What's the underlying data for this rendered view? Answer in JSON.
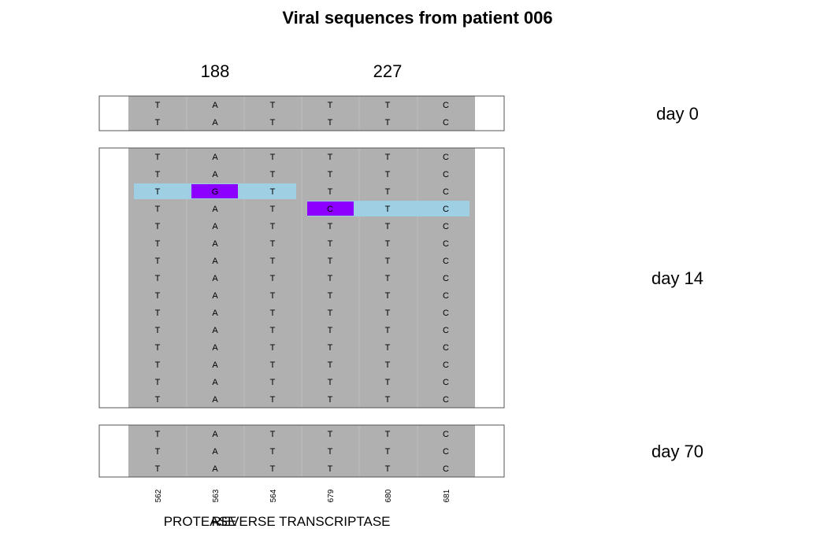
{
  "title": "Viral sequences from patient 006",
  "codon_labels": [
    "188",
    "227"
  ],
  "positions": [
    "562",
    "563",
    "564",
    "679",
    "680",
    "681"
  ],
  "regions": [
    "PROTEASE",
    "REVERSE TRANSCRIPTASE"
  ],
  "colors": {
    "background": "#b0b0b0",
    "codon_highlight": "#9ecfe2",
    "mutation": "#8b00ff",
    "frame": "#555555"
  },
  "panels": [
    {
      "label": "day 0",
      "rows": [
        [
          "T",
          "A",
          "T",
          "T",
          "T",
          "C"
        ],
        [
          "T",
          "A",
          "T",
          "T",
          "T",
          "C"
        ]
      ]
    },
    {
      "label": "day 14",
      "rows": [
        [
          "T",
          "A",
          "T",
          "T",
          "T",
          "C"
        ],
        [
          "T",
          "A",
          "T",
          "T",
          "T",
          "C"
        ],
        [
          "T",
          "G",
          "T",
          "T",
          "T",
          "C"
        ],
        [
          "T",
          "A",
          "T",
          "C",
          "T",
          "C"
        ],
        [
          "T",
          "A",
          "T",
          "T",
          "T",
          "C"
        ],
        [
          "T",
          "A",
          "T",
          "T",
          "T",
          "C"
        ],
        [
          "T",
          "A",
          "T",
          "T",
          "T",
          "C"
        ],
        [
          "T",
          "A",
          "T",
          "T",
          "T",
          "C"
        ],
        [
          "T",
          "A",
          "T",
          "T",
          "T",
          "C"
        ],
        [
          "T",
          "A",
          "T",
          "T",
          "T",
          "C"
        ],
        [
          "T",
          "A",
          "T",
          "T",
          "T",
          "C"
        ],
        [
          "T",
          "A",
          "T",
          "T",
          "T",
          "C"
        ],
        [
          "T",
          "A",
          "T",
          "T",
          "T",
          "C"
        ],
        [
          "T",
          "A",
          "T",
          "T",
          "T",
          "C"
        ],
        [
          "T",
          "A",
          "T",
          "T",
          "T",
          "C"
        ]
      ],
      "highlights": [
        {
          "row": 2,
          "codon": 0,
          "mutation_col": 1
        },
        {
          "row": 3,
          "codon": 1,
          "mutation_col": 3
        }
      ]
    },
    {
      "label": "day 70",
      "rows": [
        [
          "T",
          "A",
          "T",
          "T",
          "T",
          "C"
        ],
        [
          "T",
          "A",
          "T",
          "T",
          "T",
          "C"
        ],
        [
          "T",
          "A",
          "T",
          "T",
          "T",
          "C"
        ]
      ]
    }
  ]
}
